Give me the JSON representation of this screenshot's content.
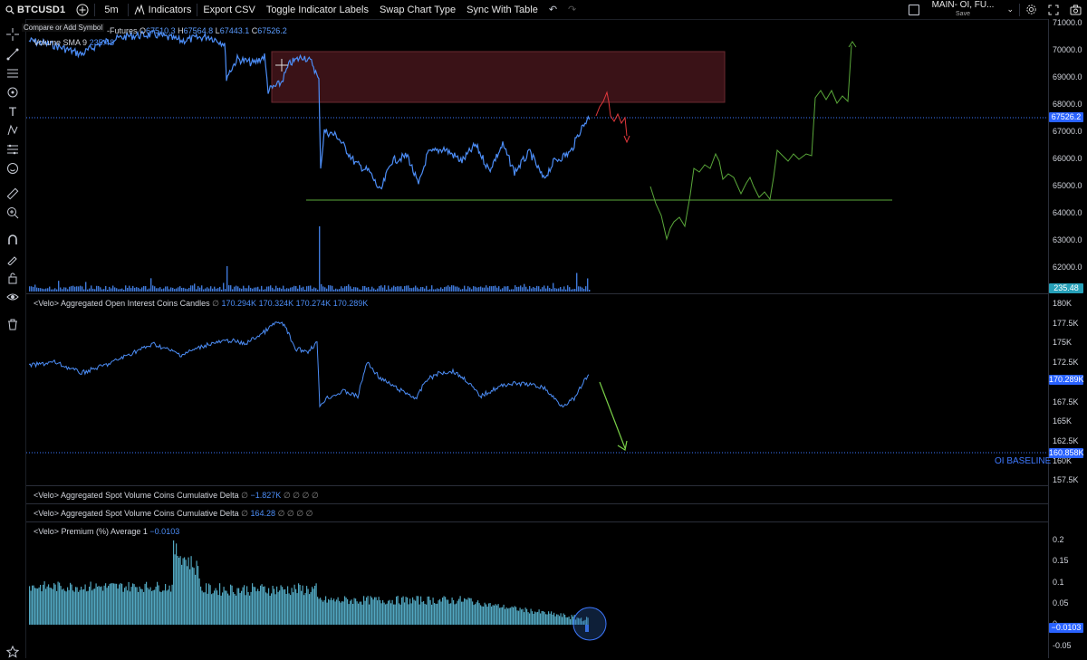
{
  "toolbar": {
    "symbol": "BTCUSD1",
    "interval": "5m",
    "indicators": "Indicators",
    "export_csv": "Export CSV",
    "toggle_labels": "Toggle Indicator Labels",
    "swap_chart": "Swap Chart Type",
    "sync_table": "Sync With Table",
    "layout_name": "MAIN- OI, FU...",
    "layout_save": "Save"
  },
  "tooltip": "Compare or Add Symbol",
  "main_pane": {
    "title": "-Futures",
    "o_label": "O",
    "o_value": "67510.3",
    "h_label": "H",
    "h_value": "67564.8",
    "l_label": "L",
    "l_value": "67443.1",
    "c_label": "C",
    "c_value": "67526.2",
    "volume_label": "Volume SMA 9",
    "volume_value": "235.48",
    "price_ticks": [
      "71000.0",
      "70000.0",
      "69000.0",
      "68000.0",
      "67000.0",
      "66000.0",
      "65000.0",
      "64000.0",
      "63000.0",
      "62000.0"
    ],
    "current_price_tag": "67526.2",
    "volume_tag": "235.48"
  },
  "oi_pane": {
    "label": "<Velo> Aggregated Open Interest Coins Candles",
    "values": [
      "170.294K",
      "170.324K",
      "170.274K",
      "170.289K"
    ],
    "ticks": [
      "180K",
      "177.5K",
      "175K",
      "172.5K",
      "170K",
      "167.5K",
      "165K",
      "162.5K",
      "160K",
      "157.5K"
    ],
    "current_tag": "170.289K",
    "baseline_tag": "160.858K",
    "baseline_label": "OI BASELINE"
  },
  "spot_delta_1": {
    "label": "<Velo> Aggregated Spot Volume Coins Cumulative Delta",
    "value": "−1.827K"
  },
  "spot_delta_2": {
    "label": "<Velo> Aggregated Spot Volume Coins Cumulative Delta",
    "value": "164.28"
  },
  "premium_pane": {
    "label": "<Velo> Premium (%) Average 1",
    "value": "−0.0103",
    "ticks": [
      "0.2",
      "0.15",
      "0.1",
      "0.05",
      "0",
      "-0.05"
    ],
    "current_tag": "−0.0103"
  },
  "colors": {
    "price_line": "#4c8df6",
    "projection_green": "#5aa83a",
    "projection_red": "#e2383c",
    "zone_fill": "#3a1217",
    "zone_border": "#6b2a31",
    "baseline": "#3d78ff",
    "premium": "#5bb9d6"
  },
  "icons": {
    "search": "search-icon",
    "add": "plus-circle-icon",
    "settings": "gear-icon",
    "fullscreen": "fullscreen-icon",
    "camera": "camera-icon"
  }
}
